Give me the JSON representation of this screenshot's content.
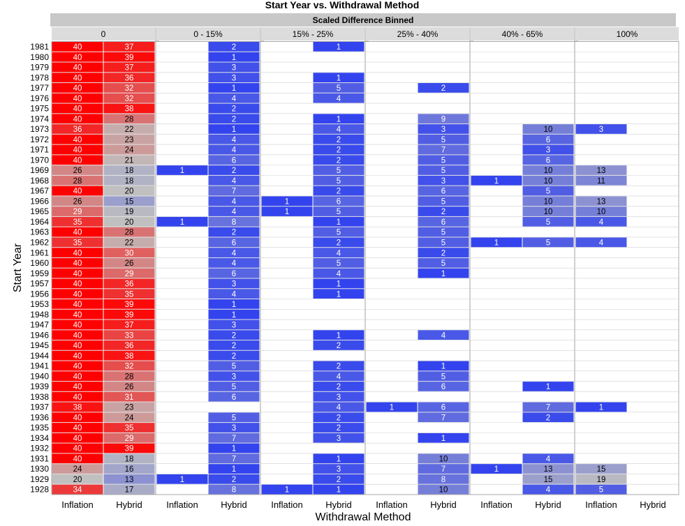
{
  "chart_data": {
    "type": "heatmap",
    "title": "Start Year vs. Withdrawal Method",
    "group_header": "Scaled Difference Binned",
    "xlabel": "Withdrawal Method",
    "ylabel": "Start Year",
    "bins": [
      "0",
      "0 - 15%",
      "15% - 25%",
      "25% - 40%",
      "40% - 65%",
      "100%"
    ],
    "methods": [
      "Inflation",
      "Hybrid"
    ],
    "years": [
      "1981",
      "1980",
      "1979",
      "1978",
      "1977",
      "1976",
      "1975",
      "1974",
      "1973",
      "1972",
      "1971",
      "1970",
      "1969",
      "1968",
      "1967",
      "1966",
      "1965",
      "1964",
      "1963",
      "1962",
      "1961",
      "1960",
      "1959",
      "1957",
      "1956",
      "1953",
      "1948",
      "1947",
      "1946",
      "1945",
      "1944",
      "1941",
      "1940",
      "1939",
      "1938",
      "1937",
      "1936",
      "1935",
      "1934",
      "1932",
      "1931",
      "1930",
      "1929",
      "1928"
    ],
    "cells": {
      "0": {
        "Inflation": [
          40,
          40,
          40,
          40,
          40,
          40,
          40,
          40,
          36,
          40,
          40,
          40,
          26,
          28,
          40,
          26,
          29,
          35,
          40,
          35,
          40,
          40,
          40,
          40,
          40,
          40,
          40,
          40,
          40,
          40,
          40,
          40,
          40,
          40,
          40,
          38,
          40,
          40,
          40,
          40,
          40,
          24,
          20,
          34
        ],
        "Hybrid": [
          37,
          39,
          37,
          36,
          32,
          32,
          38,
          28,
          22,
          23,
          24,
          21,
          18,
          18,
          20,
          15,
          19,
          20,
          28,
          22,
          30,
          26,
          29,
          36,
          35,
          39,
          39,
          37,
          33,
          36,
          38,
          32,
          28,
          26,
          31,
          23,
          24,
          35,
          29,
          39,
          18,
          16,
          13,
          17
        ]
      },
      "0 - 15%": {
        "Inflation": [
          null,
          null,
          null,
          null,
          null,
          null,
          null,
          null,
          null,
          null,
          null,
          null,
          1,
          null,
          null,
          null,
          null,
          1,
          null,
          null,
          null,
          null,
          null,
          null,
          null,
          null,
          null,
          null,
          null,
          null,
          null,
          null,
          null,
          null,
          null,
          null,
          null,
          null,
          null,
          null,
          null,
          null,
          1,
          null
        ],
        "Hybrid": [
          2,
          1,
          3,
          3,
          1,
          4,
          2,
          2,
          1,
          4,
          4,
          6,
          2,
          4,
          7,
          4,
          4,
          8,
          2,
          6,
          4,
          4,
          6,
          3,
          4,
          1,
          1,
          3,
          2,
          2,
          2,
          5,
          3,
          5,
          6,
          null,
          5,
          3,
          7,
          1,
          7,
          1,
          2,
          8
        ]
      },
      "15% - 25%": {
        "Inflation": [
          null,
          null,
          null,
          null,
          null,
          null,
          null,
          null,
          null,
          null,
          null,
          null,
          null,
          null,
          null,
          1,
          1,
          null,
          null,
          null,
          null,
          null,
          null,
          null,
          null,
          null,
          null,
          null,
          null,
          null,
          null,
          null,
          null,
          null,
          null,
          null,
          null,
          null,
          null,
          null,
          null,
          null,
          null,
          1
        ],
        "Hybrid": [
          1,
          null,
          null,
          1,
          5,
          4,
          null,
          1,
          4,
          2,
          2,
          2,
          5,
          5,
          2,
          6,
          5,
          1,
          5,
          2,
          4,
          5,
          4,
          1,
          1,
          null,
          null,
          null,
          1,
          2,
          null,
          2,
          4,
          2,
          3,
          4,
          2,
          2,
          3,
          null,
          1,
          3,
          2,
          1
        ]
      },
      "25% - 40%": {
        "Inflation": [
          null,
          null,
          null,
          null,
          null,
          null,
          null,
          null,
          null,
          null,
          null,
          null,
          null,
          null,
          null,
          null,
          null,
          null,
          null,
          null,
          null,
          null,
          null,
          null,
          null,
          null,
          null,
          null,
          null,
          null,
          null,
          null,
          null,
          null,
          null,
          1,
          null,
          null,
          null,
          null,
          null,
          null,
          null,
          null
        ],
        "Hybrid": [
          null,
          null,
          null,
          null,
          2,
          null,
          null,
          9,
          3,
          5,
          7,
          5,
          5,
          3,
          6,
          5,
          2,
          6,
          5,
          5,
          2,
          5,
          1,
          null,
          null,
          null,
          null,
          null,
          4,
          null,
          null,
          1,
          5,
          6,
          null,
          6,
          7,
          null,
          1,
          null,
          10,
          7,
          8,
          10
        ]
      },
      "40% - 65%": {
        "Inflation": [
          null,
          null,
          null,
          null,
          null,
          null,
          null,
          null,
          null,
          null,
          null,
          null,
          null,
          1,
          null,
          null,
          null,
          null,
          null,
          1,
          null,
          null,
          null,
          null,
          null,
          null,
          null,
          null,
          null,
          null,
          null,
          null,
          null,
          null,
          null,
          null,
          null,
          null,
          null,
          null,
          null,
          1,
          null,
          null
        ],
        "Hybrid": [
          null,
          null,
          null,
          null,
          null,
          null,
          null,
          null,
          10,
          6,
          3,
          6,
          10,
          10,
          5,
          10,
          10,
          5,
          null,
          5,
          null,
          null,
          null,
          null,
          null,
          null,
          null,
          null,
          null,
          null,
          null,
          null,
          null,
          1,
          null,
          7,
          2,
          null,
          null,
          null,
          4,
          13,
          15,
          4
        ]
      },
      "100%": {
        "Inflation": [
          null,
          null,
          null,
          null,
          null,
          null,
          null,
          null,
          3,
          null,
          null,
          null,
          13,
          11,
          null,
          13,
          10,
          4,
          null,
          4,
          null,
          null,
          null,
          null,
          null,
          null,
          null,
          null,
          null,
          null,
          null,
          null,
          null,
          null,
          null,
          1,
          null,
          null,
          null,
          null,
          null,
          15,
          19,
          5
        ],
        "Hybrid": [
          null,
          null,
          null,
          null,
          null,
          null,
          null,
          null,
          null,
          null,
          null,
          null,
          null,
          null,
          null,
          null,
          null,
          null,
          null,
          null,
          null,
          null,
          null,
          null,
          null,
          null,
          null,
          null,
          null,
          null,
          null,
          null,
          null,
          null,
          null,
          null,
          null,
          null,
          null,
          null,
          null,
          null,
          null,
          null
        ]
      }
    },
    "color_scale": {
      "low": "#3344ee",
      "mid": "#c0c0c0",
      "high": "#ff0000",
      "low_value": 1,
      "mid_value": 20,
      "high_value": 40
    }
  }
}
